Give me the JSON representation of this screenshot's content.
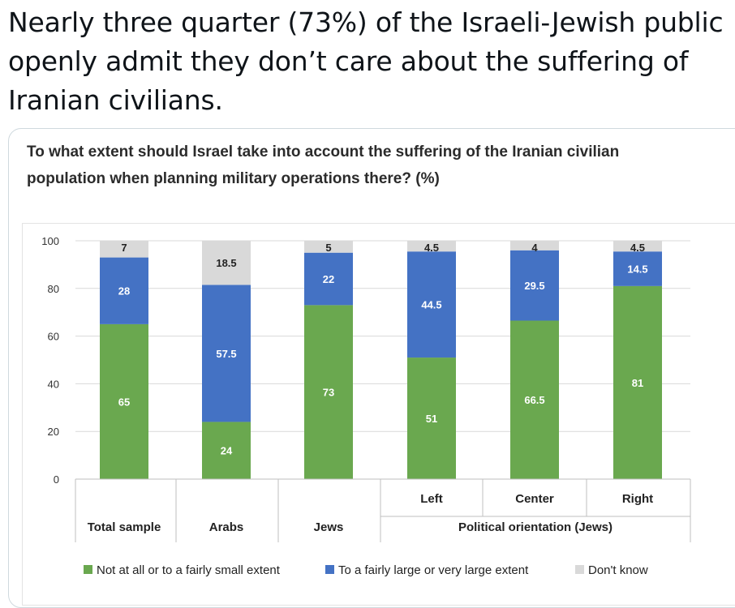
{
  "tweet": {
    "line1": "Nearly three quarter (73%) of the Israeli-Jewish public",
    "line2": "openly admit they don’t care about the suffering of",
    "line3": "Iranian civilians."
  },
  "chart_data": {
    "type": "bar",
    "stacked": true,
    "title_line1": "To what extent should Israel take into account the suffering of the Iranian civilian",
    "title_line2": "population when planning military operations there? (%)",
    "categories": [
      "Total sample",
      "Arabs",
      "Jews",
      "Left",
      "Center",
      "Right"
    ],
    "group_label": "Political orientation (Jews)",
    "ylim": [
      0,
      100
    ],
    "yticks": [
      0,
      20,
      40,
      60,
      80,
      100
    ],
    "series": [
      {
        "name": "Not at all or to a fairly small extent",
        "color": "#6aa84f",
        "values": [
          65,
          24,
          73,
          51,
          66.5,
          81
        ]
      },
      {
        "name": "To a fairly large or very large extent",
        "color": "#4472c4",
        "values": [
          28,
          57.5,
          22,
          44.5,
          29.5,
          14.5
        ]
      },
      {
        "name": "Don't know",
        "color": "#d9d9d9",
        "values": [
          7,
          18.5,
          5,
          4.5,
          4,
          4.5
        ]
      }
    ],
    "labels": [
      [
        "65",
        "24",
        "73",
        "51",
        "66.5",
        "81"
      ],
      [
        "28",
        "57.5",
        "22",
        "44.5",
        "29.5",
        "14.5"
      ],
      [
        "7",
        "18.5",
        "5",
        "4.5",
        "4",
        "4.5"
      ]
    ],
    "legend_position": "bottom",
    "grid": true
  }
}
